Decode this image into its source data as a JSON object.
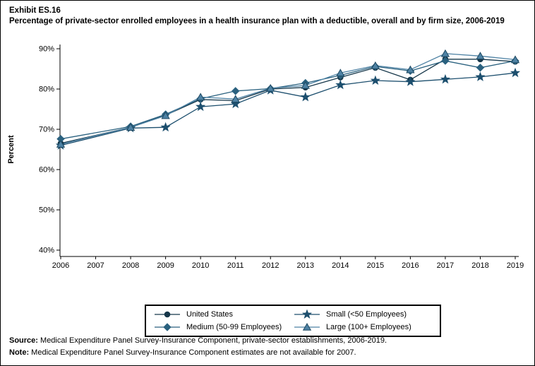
{
  "header": {
    "exhibit": "Exhibit ES.16",
    "title": "Percentage of private-sector enrolled employees in a health insurance plan with a deductible, overall and by firm size, 2006-2019"
  },
  "chart_data": {
    "type": "line",
    "title": "Percentage of private-sector enrolled employees in a health insurance plan with a deductible, overall and by firm size, 2006-2019",
    "ylabel": "Percent",
    "x": [
      2006,
      2007,
      2008,
      2009,
      2010,
      2011,
      2012,
      2013,
      2014,
      2015,
      2016,
      2017,
      2018,
      2019
    ],
    "y_ticks": [
      40,
      50,
      60,
      70,
      80,
      90
    ],
    "y_tick_suffix": "%",
    "ylim": [
      38,
      92
    ],
    "grid": false,
    "legend_position": "bottom",
    "note": "2007 estimates not available; lines connect 2006 to 2008",
    "series": [
      {
        "name": "United States",
        "marker": "circle",
        "color": "#16374a",
        "values": [
          66.5,
          null,
          70.5,
          73.5,
          77.4,
          77.1,
          80.0,
          80.4,
          82.9,
          85.3,
          82.3,
          87.4,
          87.4,
          86.8
        ]
      },
      {
        "name": "Small (<50 Employees)",
        "marker": "star",
        "color": "#1d4f6e",
        "values": [
          66.0,
          null,
          70.3,
          70.5,
          75.6,
          76.3,
          79.7,
          78.0,
          81.0,
          82.1,
          81.8,
          82.4,
          83.0,
          84.0
        ]
      },
      {
        "name": "Medium (50-99 Employees)",
        "marker": "diamond",
        "color": "#2a617f",
        "values": [
          67.6,
          null,
          70.7,
          73.7,
          77.6,
          79.5,
          80.1,
          81.5,
          83.4,
          85.6,
          84.5,
          87.0,
          85.3,
          87.0
        ]
      },
      {
        "name": "Large (100+ Employees)",
        "marker": "triangle",
        "color": "#4e82a4",
        "values": [
          66.3,
          null,
          70.5,
          73.4,
          78.0,
          77.5,
          80.2,
          80.9,
          84.0,
          85.8,
          84.8,
          88.8,
          88.2,
          87.3
        ]
      }
    ]
  },
  "legend": {
    "items": [
      {
        "label": "United States",
        "marker": "circle"
      },
      {
        "label": "Small (<50 Employees)",
        "marker": "star"
      },
      {
        "label": "Medium (50-99 Employees)",
        "marker": "diamond"
      },
      {
        "label": "Large (100+ Employees)",
        "marker": "triangle"
      }
    ]
  },
  "footer": {
    "source_label": "Source:",
    "source_text": " Medical Expenditure Panel Survey-Insurance Component, private-sector establishments, 2006-2019.",
    "note_label": "Note:",
    "note_text": " Medical Expenditure Panel Survey-Insurance Component estimates are not available for 2007."
  }
}
